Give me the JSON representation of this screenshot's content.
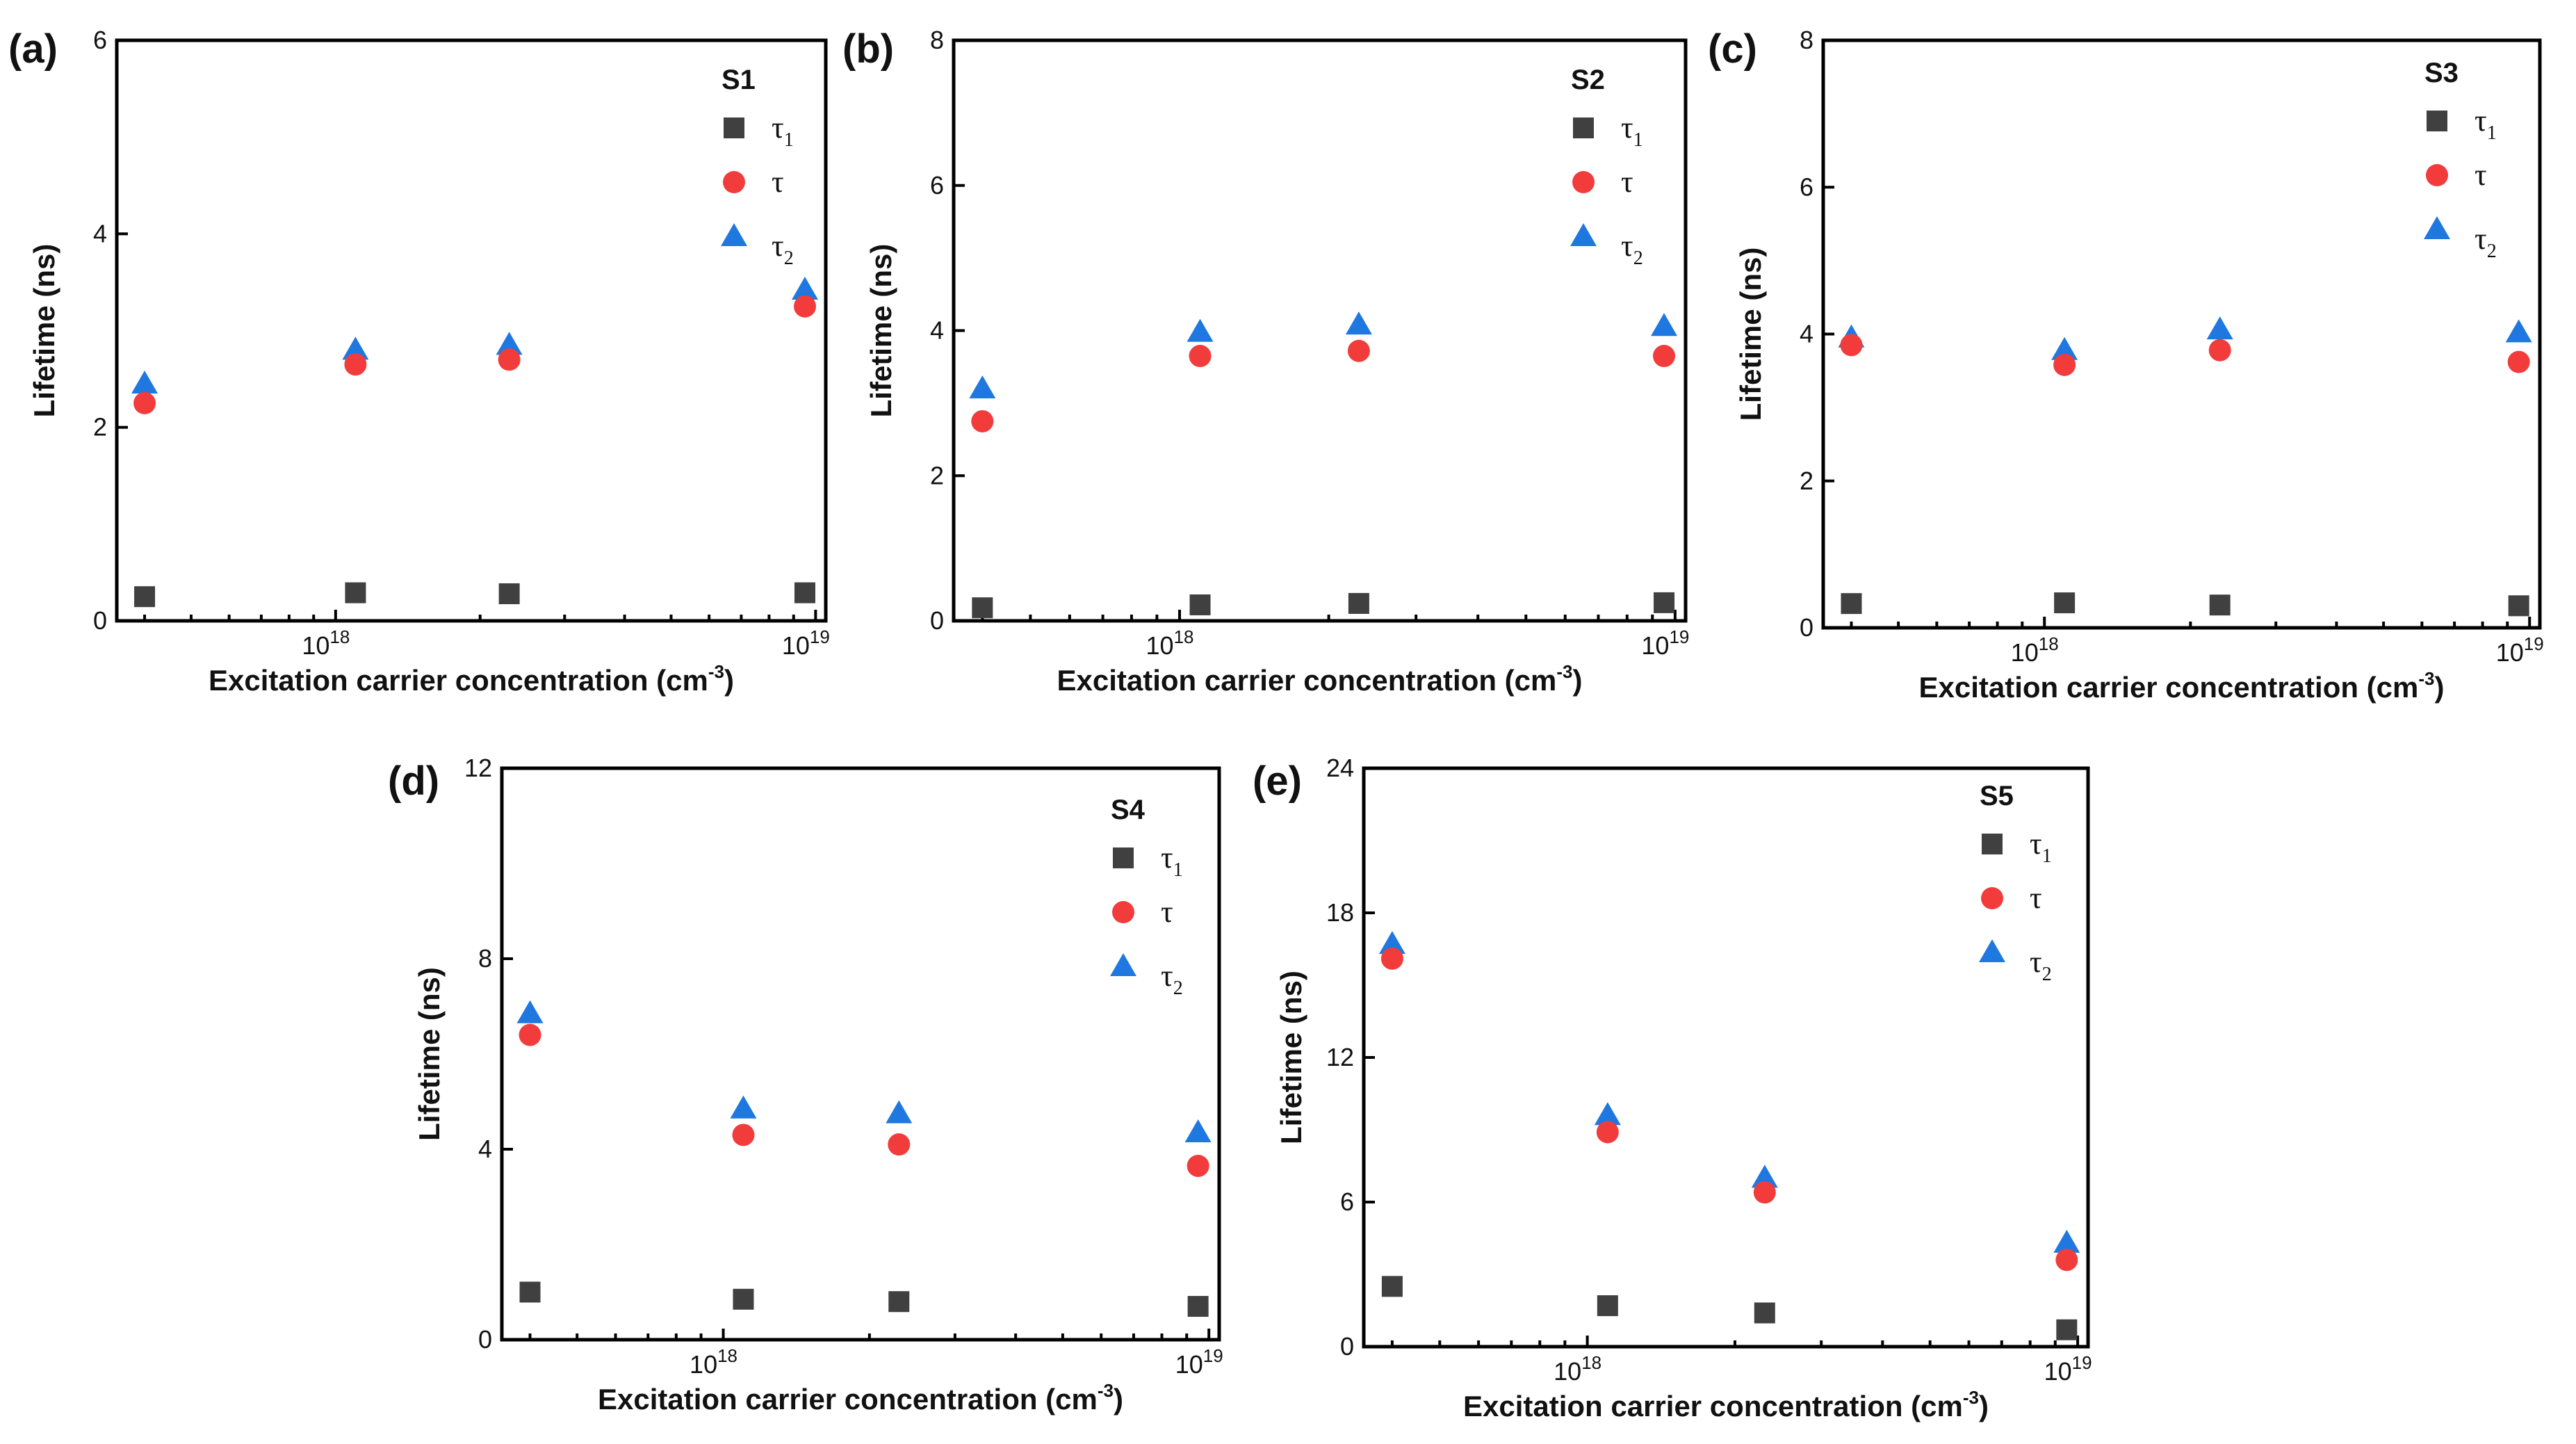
{
  "figure": {
    "x_axis_label": "Excitation carrier concentration (cm",
    "x_axis_exponent": "-3",
    "x_axis_label_suffix": ")",
    "y_axis_label": "Lifetime (ns)",
    "x_tick_base": "10",
    "x_tick_exponents": [
      "18",
      "19"
    ],
    "legend_symbols": [
      "τ",
      "τ",
      "τ"
    ],
    "legend_subscripts": [
      "1",
      "",
      "2"
    ],
    "series_names": [
      "τ1",
      "τ",
      "τ2"
    ],
    "colors": {
      "tau1": "#404040",
      "tau": "#f23c3c",
      "tau2": "#1f77e0"
    }
  },
  "panels": [
    {
      "label": "(a)",
      "sample": "S1"
    },
    {
      "label": "(b)",
      "sample": "S2"
    },
    {
      "label": "(c)",
      "sample": "S3"
    },
    {
      "label": "(d)",
      "sample": "S4"
    },
    {
      "label": "(e)",
      "sample": "S5"
    }
  ],
  "chart_data": [
    {
      "type": "scatter",
      "title": "S1",
      "panel": "(a)",
      "xlabel": "Excitation carrier concentration (cm-3)",
      "ylabel": "Lifetime (ns)",
      "xscale": "log",
      "xlim": [
        3.5e+17,
        1.05e+19
      ],
      "ylim": [
        0,
        6
      ],
      "yticks": [
        0,
        2,
        4,
        6
      ],
      "x": [
        4e+17,
        1.1e+18,
        2.3e+18,
        9.5e+18
      ],
      "series": [
        {
          "name": "τ1",
          "values": [
            0.25,
            0.29,
            0.28,
            0.29
          ]
        },
        {
          "name": "τ",
          "values": [
            2.25,
            2.65,
            2.7,
            3.25
          ]
        },
        {
          "name": "τ2",
          "values": [
            2.45,
            2.8,
            2.85,
            3.42
          ]
        }
      ]
    },
    {
      "type": "scatter",
      "title": "S2",
      "panel": "(b)",
      "xlabel": "Excitation carrier concentration (cm-3)",
      "ylabel": "Lifetime (ns)",
      "xscale": "log",
      "xlim": [
        3.5e+17,
        1.05e+19
      ],
      "ylim": [
        0,
        8
      ],
      "yticks": [
        0,
        2,
        4,
        6,
        8
      ],
      "x": [
        4e+17,
        1.1e+18,
        2.3e+18,
        9.5e+18
      ],
      "series": [
        {
          "name": "τ1",
          "values": [
            0.18,
            0.22,
            0.24,
            0.25
          ]
        },
        {
          "name": "τ",
          "values": [
            2.75,
            3.65,
            3.72,
            3.65
          ]
        },
        {
          "name": "τ2",
          "values": [
            3.2,
            3.98,
            4.08,
            4.06
          ]
        }
      ]
    },
    {
      "type": "scatter",
      "title": "S3",
      "panel": "(c)",
      "xlabel": "Excitation carrier concentration (cm-3)",
      "ylabel": "Lifetime (ns)",
      "xscale": "log",
      "xlim": [
        3.5e+17,
        1.05e+19
      ],
      "ylim": [
        0,
        8
      ],
      "yticks": [
        0,
        2,
        4,
        6,
        8
      ],
      "x": [
        4e+17,
        1.1e+18,
        2.3e+18,
        9.5e+18
      ],
      "series": [
        {
          "name": "τ1",
          "values": [
            0.33,
            0.34,
            0.31,
            0.3
          ]
        },
        {
          "name": "τ",
          "values": [
            3.85,
            3.58,
            3.78,
            3.62
          ]
        },
        {
          "name": "τ2",
          "values": [
            3.95,
            3.78,
            4.06,
            4.02
          ]
        }
      ]
    },
    {
      "type": "scatter",
      "title": "S4",
      "panel": "(d)",
      "xlabel": "Excitation carrier concentration (cm-3)",
      "ylabel": "Lifetime (ns)",
      "xscale": "log",
      "xlim": [
        3.5e+17,
        1.05e+19
      ],
      "ylim": [
        0,
        12
      ],
      "yticks": [
        0,
        4,
        8,
        12
      ],
      "x": [
        4e+17,
        1.1e+18,
        2.3e+18,
        9.5e+18
      ],
      "series": [
        {
          "name": "τ1",
          "values": [
            1.0,
            0.85,
            0.8,
            0.7
          ]
        },
        {
          "name": "τ",
          "values": [
            6.4,
            4.3,
            4.1,
            3.65
          ]
        },
        {
          "name": "τ2",
          "values": [
            6.85,
            4.85,
            4.75,
            4.35
          ]
        }
      ]
    },
    {
      "type": "scatter",
      "title": "S5",
      "panel": "(e)",
      "xlabel": "Excitation carrier concentration (cm-3)",
      "ylabel": "Lifetime (ns)",
      "xscale": "log",
      "xlim": [
        3.5e+17,
        1.05e+19
      ],
      "ylim": [
        0,
        24
      ],
      "yticks": [
        0,
        6,
        12,
        18,
        24
      ],
      "x": [
        4e+17,
        1.1e+18,
        2.3e+18,
        9.5e+18
      ],
      "series": [
        {
          "name": "τ1",
          "values": [
            2.5,
            1.7,
            1.4,
            0.7
          ]
        },
        {
          "name": "τ",
          "values": [
            16.1,
            8.9,
            6.4,
            3.6
          ]
        },
        {
          "name": "τ2",
          "values": [
            16.7,
            9.6,
            7.0,
            4.3
          ]
        }
      ]
    }
  ]
}
